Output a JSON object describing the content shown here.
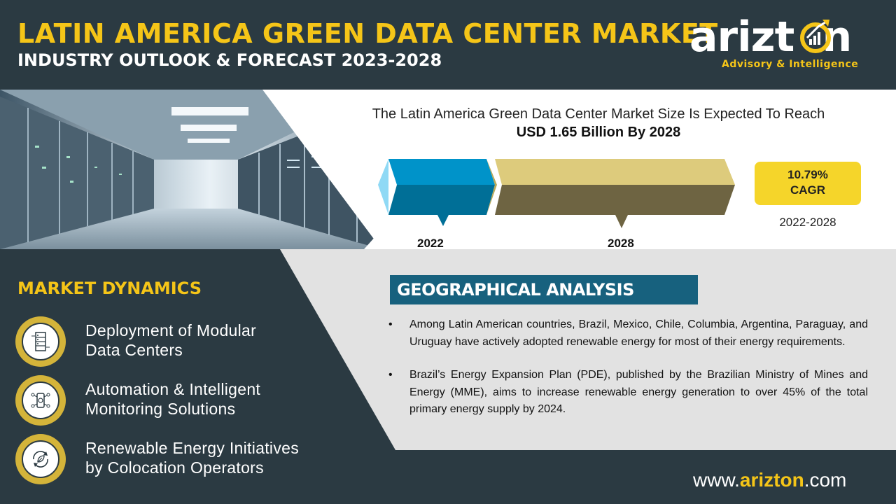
{
  "header": {
    "title": "LATIN AMERICA GREEN DATA CENTER MARKET",
    "subtitle": "INDUSTRY OUTLOOK & FORECAST 2023-2028"
  },
  "logo": {
    "name_prefix": "arizt",
    "name_suffix": "n",
    "tagline": "Advisory & Intelligence"
  },
  "market_size": {
    "line1": "The Latin America Green Data Center Market Size Is Expected To Reach",
    "line2": "USD 1.65 Billion By 2028",
    "year_start": "2022",
    "year_end": "2028",
    "cagr_value": "10.79%",
    "cagr_label": "CAGR",
    "cagr_period": "2022-2028"
  },
  "market_dynamics": {
    "title": "MARKET DYNAMICS",
    "items": [
      {
        "line1": "Deployment of Modular",
        "line2": "Data Centers",
        "icon": "server-rack-icon"
      },
      {
        "line1": "Automation & Intelligent",
        "line2": "Monitoring Solutions",
        "icon": "monitoring-icon"
      },
      {
        "line1": "Renewable Energy Initiatives",
        "line2": "by Colocation Operators",
        "icon": "recycle-leaf-icon"
      }
    ]
  },
  "geo": {
    "title": "GEOGRAPHICAL ANALYSIS",
    "points": [
      "Among Latin American countries, Brazil, Mexico, Chile, Columbia, Argentina, Paraguay, and Uruguay have actively adopted renewable energy for most of their energy requirements.",
      "Brazil’s Energy Expansion Plan (PDE), published by the Brazilian Ministry of Mines and Energy (MME), aims to increase renewable energy generation to over 45% of the total primary energy supply by 2024."
    ]
  },
  "footer": {
    "url_prefix": "www.",
    "url_brand": "arizton",
    "url_suffix": ".com"
  },
  "colors": {
    "dark": "#2b3a42",
    "accent_yellow": "#f5c518",
    "geo_blue": "#17617e",
    "bar_blue": "#0093c9",
    "bar_khaki": "#ddcb7c"
  }
}
